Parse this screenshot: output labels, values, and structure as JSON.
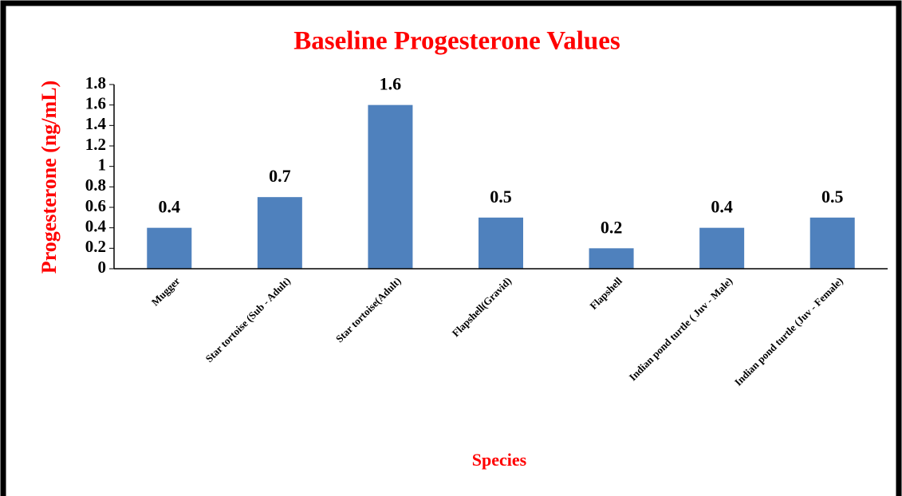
{
  "chart_data": {
    "type": "bar",
    "title": "Baseline Progesterone Values",
    "x_label": "Species",
    "y_label": "Progesterone (ng/mL)",
    "categories": [
      "Mugger",
      "Star tortoise (Sub - Adult)",
      "Star tortoise(Adult)",
      "Flapshell(Gravid)",
      "Flapshell",
      "Indian pond turtle ( Juv - Male)",
      "Indian pond turtle  (Juv - Female)"
    ],
    "values": [
      0.4,
      0.7,
      1.6,
      0.5,
      0.2,
      0.4,
      0.5
    ],
    "color": "#4f81bd",
    "ylim": [
      0,
      1.8
    ],
    "yticks": [
      0,
      0.2,
      0.4,
      0.6,
      0.8,
      1,
      1.2,
      1.4,
      1.6,
      1.8
    ]
  }
}
